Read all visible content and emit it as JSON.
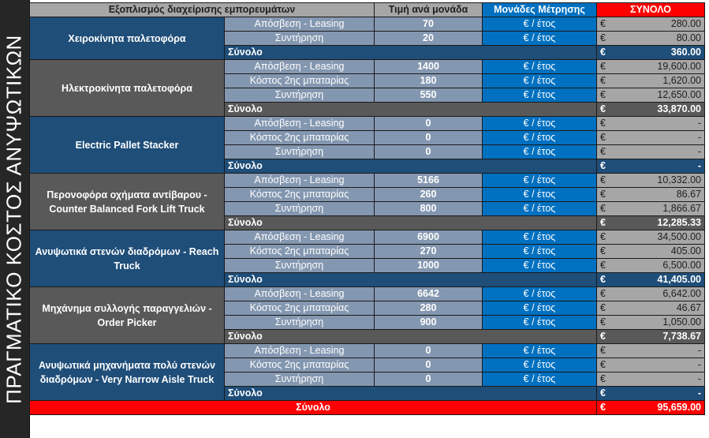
{
  "side_title": "ΠΡΑΓΜΑΤΙΚΟ ΚΟΣΤΟΣ ΑΝΥΨΩΤΙΚΩΝ",
  "header": {
    "equipment": "Εξοπλισμός διαχείρισης εμπορευμάτων",
    "unit_price": "Τιμή ανά μονάδα",
    "units": "Μονάδες Μέτρησης",
    "total": "ΣΥΝΟΛΟ"
  },
  "currency": "€",
  "sum_label": "Σύνολο",
  "groups": [
    {
      "name": "Χειροκίνητα  παλετοφόρα",
      "style": "blue",
      "rows": [
        {
          "cost": "Απόσβεση - Leasing",
          "price": "70",
          "unit": "€ / έτος",
          "total": "280.00"
        },
        {
          "cost": "Συντήρηση",
          "price": "20",
          "unit": "€ / έτος",
          "total": "80.00"
        }
      ],
      "sum": "360.00"
    },
    {
      "name": "Ηλεκτροκίνητα  παλετοφόρα",
      "style": "gray",
      "rows": [
        {
          "cost": "Απόσβεση - Leasing",
          "price": "1400",
          "unit": "€ / έτος",
          "total": "19,600.00"
        },
        {
          "cost": "Κόστος 2ης μπαταρίας",
          "price": "180",
          "unit": "€ / έτος",
          "total": "1,620.00"
        },
        {
          "cost": "Συντήρηση",
          "price": "550",
          "unit": "€ / έτος",
          "total": "12,650.00"
        }
      ],
      "sum": "33,870.00"
    },
    {
      "name": "Electric Pallet Stacker",
      "style": "blue",
      "rows": [
        {
          "cost": "Απόσβεση - Leasing",
          "price": "0",
          "unit": "€ / έτος",
          "total": "-"
        },
        {
          "cost": "Κόστος 2ης μπαταρίας",
          "price": "0",
          "unit": "€ / έτος",
          "total": "-"
        },
        {
          "cost": "Συντήρηση",
          "price": "0",
          "unit": "€ / έτος",
          "total": "-"
        }
      ],
      "sum": "-"
    },
    {
      "name": "Περονοφόρα οχήματα αντίβαρου - Counter Balanced Fork Lift Truck",
      "style": "gray",
      "rows": [
        {
          "cost": "Απόσβεση - Leasing",
          "price": "5166",
          "unit": "€ / έτος",
          "total": "10,332.00"
        },
        {
          "cost": "Κόστος 2ης μπαταρίας",
          "price": "260",
          "unit": "€ / έτος",
          "total": "86.67"
        },
        {
          "cost": "Συντήρηση",
          "price": "800",
          "unit": "€ / έτος",
          "total": "1,866.67"
        }
      ],
      "sum": "12,285.33"
    },
    {
      "name": "Ανυψωτικά στενών διαδρόμων  - Reach Truck",
      "style": "blue",
      "rows": [
        {
          "cost": "Απόσβεση - Leasing",
          "price": "6900",
          "unit": "€ / έτος",
          "total": "34,500.00"
        },
        {
          "cost": "Κόστος 2ης μπαταρίας",
          "price": "270",
          "unit": "€ / έτος",
          "total": "405.00"
        },
        {
          "cost": "Συντήρηση",
          "price": "1000",
          "unit": "€ / έτος",
          "total": "6,500.00"
        }
      ],
      "sum": "41,405.00"
    },
    {
      "name": "Μηχάνημα συλλογής παραγγελιών - Order Picker",
      "style": "gray",
      "rows": [
        {
          "cost": "Απόσβεση - Leasing",
          "price": "6642",
          "unit": "€ / έτος",
          "total": "6,642.00"
        },
        {
          "cost": "Κόστος 2ης μπαταρίας",
          "price": "280",
          "unit": "€ / έτος",
          "total": "46.67"
        },
        {
          "cost": "Συντήρηση",
          "price": "900",
          "unit": "€ / έτος",
          "total": "1,050.00"
        }
      ],
      "sum": "7,738.67"
    },
    {
      "name": "Ανυψωτικά μηχανήματα πολύ στενών διαδρόμων - Very Narrow Aisle Truck",
      "style": "blue",
      "rows": [
        {
          "cost": "Απόσβεση - Leasing",
          "price": "0",
          "unit": "€ / έτος",
          "total": "-"
        },
        {
          "cost": "Κόστος 2ης μπαταρίας",
          "price": "0",
          "unit": "€ / έτος",
          "total": "-"
        },
        {
          "cost": "Συντήρηση",
          "price": "0",
          "unit": "€ / έτος",
          "total": "-"
        }
      ],
      "sum": "-"
    }
  ],
  "grand_total": {
    "label": "Σύνολο",
    "value": "95,659.00"
  },
  "colors": {
    "group_blue": "#1f4e79",
    "group_gray": "#595959",
    "unit_blue": "#0070c0",
    "total_red": "#ff0000",
    "cost_slate": "#8497b0",
    "total_gray": "#a6a6a6"
  }
}
